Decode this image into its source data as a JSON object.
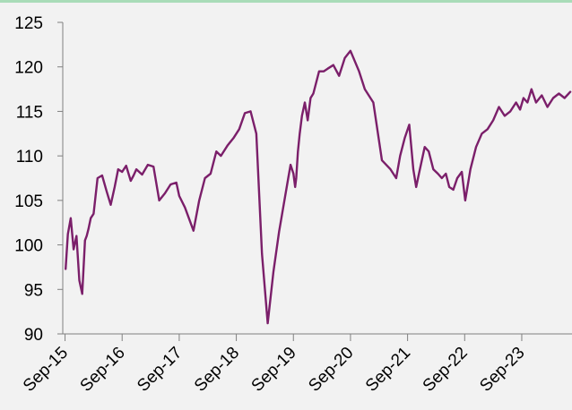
{
  "colors": {
    "background": "#f2f2f2",
    "top_border": "#a9dcb8",
    "axis": "#808080",
    "series_line": "#7b1f6a"
  },
  "chart_data": {
    "type": "line",
    "title": "",
    "xlabel": "",
    "ylabel": "",
    "ylim": [
      90,
      125
    ],
    "yticks": [
      90,
      95,
      100,
      105,
      110,
      115,
      120,
      125
    ],
    "xlim": [
      2015.71,
      2024.63
    ],
    "xticks": [
      {
        "label": "Sep-15",
        "x": 2015.75
      },
      {
        "label": "Sep-16",
        "x": 2016.75
      },
      {
        "label": "Sep-17",
        "x": 2017.75
      },
      {
        "label": "Sep-18",
        "x": 2018.75
      },
      {
        "label": "Sep-19",
        "x": 2019.75
      },
      {
        "label": "Sep-20",
        "x": 2020.75
      },
      {
        "label": "Sep-21",
        "x": 2021.75
      },
      {
        "label": "Sep-22",
        "x": 2022.75
      },
      {
        "label": "Sep-23",
        "x": 2023.75
      }
    ],
    "grid": false,
    "legend": "none",
    "series": [
      {
        "x": [
          2015.76,
          2015.8,
          2015.85,
          2015.9,
          2015.95,
          2016.0,
          2016.05,
          2016.1,
          2016.13,
          2016.16,
          2016.2,
          2016.25,
          2016.32,
          2016.4,
          2016.48,
          2016.55,
          2016.62,
          2016.68,
          2016.75,
          2016.82,
          2016.9,
          2016.95,
          2017.0,
          2017.1,
          2017.2,
          2017.3,
          2017.4,
          2017.5,
          2017.6,
          2017.7,
          2017.75,
          2017.85,
          2018.0,
          2018.1,
          2018.2,
          2018.3,
          2018.4,
          2018.48,
          2018.6,
          2018.7,
          2018.8,
          2018.9,
          2019.0,
          2019.1,
          2019.2,
          2019.3,
          2019.4,
          2019.5,
          2019.58,
          2019.66,
          2019.7,
          2019.75,
          2019.78,
          2019.8,
          2019.83,
          2019.86,
          2019.9,
          2019.95,
          2020.0,
          2020.05,
          2020.1,
          2020.2,
          2020.28,
          2020.35,
          2020.45,
          2020.55,
          2020.65,
          2020.75,
          2020.9,
          2021.0,
          2021.15,
          2021.3,
          2021.45,
          2021.55,
          2021.62,
          2021.7,
          2021.78,
          2021.85,
          2021.9,
          2021.95,
          2022.0,
          2022.05,
          2022.12,
          2022.2,
          2022.28,
          2022.35,
          2022.42,
          2022.48,
          2022.55,
          2022.62,
          2022.7,
          2022.76,
          2022.85,
          2022.95,
          2023.05,
          2023.15,
          2023.25,
          2023.35,
          2023.45,
          2023.55,
          2023.65,
          2023.72,
          2023.78,
          2023.85,
          2023.92,
          2024.0,
          2024.1,
          2024.2,
          2024.3,
          2024.4,
          2024.5,
          2024.6
        ],
        "y": [
          97.3,
          101.2,
          103.0,
          99.5,
          101.0,
          96.0,
          94.5,
          100.5,
          101.0,
          101.8,
          103.0,
          103.5,
          107.5,
          107.8,
          106.0,
          104.5,
          106.5,
          108.5,
          108.2,
          108.9,
          107.2,
          107.8,
          108.5,
          107.9,
          109.0,
          108.8,
          105.0,
          105.8,
          106.8,
          107.0,
          105.5,
          104.2,
          101.6,
          105.0,
          107.5,
          108.0,
          110.5,
          110.0,
          111.2,
          112.0,
          113.0,
          114.8,
          115.0,
          112.5,
          99.0,
          91.2,
          97.0,
          101.5,
          104.5,
          107.5,
          109.0,
          108.0,
          106.5,
          107.5,
          110.5,
          112.5,
          114.5,
          116.0,
          114.0,
          116.5,
          117.0,
          119.5,
          119.5,
          119.8,
          120.2,
          119.0,
          121.0,
          121.8,
          119.5,
          117.5,
          116.0,
          109.5,
          108.5,
          107.5,
          110.0,
          112.0,
          113.5,
          108.5,
          106.5,
          108.0,
          109.5,
          111.0,
          110.5,
          108.5,
          108.0,
          107.5,
          108.0,
          106.5,
          106.2,
          107.5,
          108.2,
          105.0,
          108.5,
          111.0,
          112.5,
          113.0,
          114.0,
          115.5,
          114.5,
          115.0,
          116.0,
          115.2,
          116.5,
          116.0,
          117.5,
          116.0,
          116.8,
          115.5,
          116.5,
          117.0,
          116.5,
          117.2
        ]
      }
    ]
  }
}
